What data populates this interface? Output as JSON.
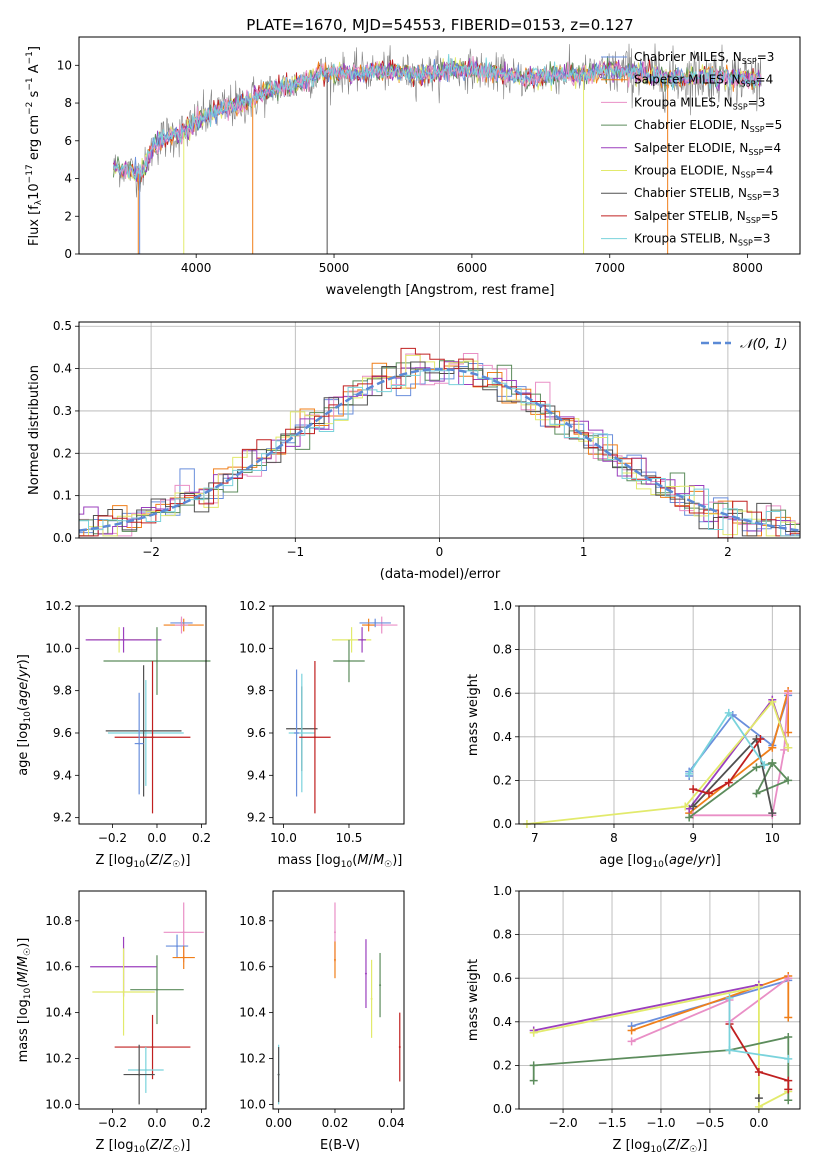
{
  "title": "PLATE=1670, MJD=54553, FIBERID=0153, z=0.127",
  "colors": {
    "Chabrier MILES": "#6a8fdc",
    "Salpeter MILES": "#f07f1a",
    "Kroupa MILES": "#e98fc6",
    "Chabrier ELODIE": "#5c8c5c",
    "Salpeter ELODIE": "#9b3fbe",
    "Kroupa ELODIE": "#e2ea6c",
    "Chabrier STELIB": "#505050",
    "Salpeter STELIB": "#c02020",
    "Kroupa STELIB": "#7ad3dc"
  },
  "panel_spectrum": {
    "xlabel": "wavelength [Angstrom, rest frame]",
    "ylabel": "Flux [f_λ10^-17 erg cm^-2 s^-1 A^-1]",
    "xticks": [
      "4000",
      "5000",
      "6000",
      "7000",
      "8000"
    ],
    "yticks": [
      "0",
      "2",
      "4",
      "6",
      "8",
      "10"
    ],
    "legend": [
      {
        "key": "Chabrier MILES",
        "base": "Chabrier MILES, N",
        "sub": "SSP",
        "tail": "=3"
      },
      {
        "key": "Salpeter MILES",
        "base": "Salpeter MILES, N",
        "sub": "SSP",
        "tail": "=4"
      },
      {
        "key": "Kroupa MILES",
        "base": "Kroupa MILES, N",
        "sub": "SSP",
        "tail": "=3"
      },
      {
        "key": "Chabrier ELODIE",
        "base": "Chabrier ELODIE, N",
        "sub": "SSP",
        "tail": "=5"
      },
      {
        "key": "Salpeter ELODIE",
        "base": "Salpeter ELODIE, N",
        "sub": "SSP",
        "tail": "=4"
      },
      {
        "key": "Kroupa ELODIE",
        "base": "Kroupa ELODIE, N",
        "sub": "SSP",
        "tail": "=4"
      },
      {
        "key": "Chabrier STELIB",
        "base": "Chabrier STELIB, N",
        "sub": "SSP",
        "tail": "=3"
      },
      {
        "key": "Salpeter STELIB",
        "base": "Salpeter STELIB, N",
        "sub": "SSP",
        "tail": "=5"
      },
      {
        "key": "Kroupa STELIB",
        "base": "Kroupa STELIB, N",
        "sub": "SSP",
        "tail": "=3"
      }
    ]
  },
  "panel_hist": {
    "xlabel": "(data-model)/error",
    "ylabel": "Normed distribution",
    "legend": "𝒩(0, 1)",
    "xticks": [
      "−2",
      "−1",
      "0",
      "1",
      "2"
    ],
    "yticks": [
      "0.0",
      "0.1",
      "0.2",
      "0.3",
      "0.4",
      "0.5"
    ]
  },
  "panel_age_Z": {
    "xlabel": "Z [log₁₀(Z/Z☉)]",
    "ylabel": "age  [log₁₀(age/yr)]",
    "xticks": [
      "−0.2",
      "0.0",
      "0.2"
    ],
    "yticks": [
      "9.2",
      "9.4",
      "9.6",
      "9.8",
      "10.0",
      "10.2"
    ]
  },
  "panel_age_mass": {
    "xlabel": "mass [log₁₀(M/M☉)]",
    "xticks": [
      "10.0",
      "10.5"
    ],
    "yticks": [
      "9.2",
      "9.4",
      "9.6",
      "9.8",
      "10.0",
      "10.2"
    ]
  },
  "panel_mw_age": {
    "xlabel": "age  [log₁₀(age/yr)]",
    "ylabel": "mass weight",
    "xticks": [
      "7",
      "8",
      "9",
      "10"
    ],
    "yticks": [
      "0.0",
      "0.2",
      "0.4",
      "0.6",
      "0.8",
      "1.0"
    ]
  },
  "panel_mass_Z": {
    "xlabel": "Z [log₁₀(Z/Z☉)]",
    "ylabel": "mass [log₁₀(M/M☉)]",
    "xticks": [
      "−0.2",
      "0.0",
      "0.2"
    ],
    "yticks": [
      "10.0",
      "10.2",
      "10.4",
      "10.6",
      "10.8"
    ]
  },
  "panel_mass_ebv": {
    "xlabel": "E(B-V)",
    "xticks": [
      "0.00",
      "0.02",
      "0.04"
    ],
    "yticks": [
      "10.0",
      "10.2",
      "10.4",
      "10.6",
      "10.8"
    ]
  },
  "panel_mw_Z": {
    "xlabel": "Z [log₁₀(Z/Z☉)]",
    "ylabel": "mass weight",
    "xticks": [
      "−2.0",
      "−1.5",
      "−1.0",
      "−0.5",
      "0.0"
    ],
    "yticks": [
      "0.0",
      "0.2",
      "0.4",
      "0.6",
      "0.8",
      "1.0"
    ]
  },
  "chart_data": [
    {
      "type": "line",
      "xlim": [
        3150,
        8380
      ],
      "ylim": [
        0,
        11.5
      ],
      "continuum_model": [
        [
          3400,
          4.6
        ],
        [
          3500,
          4.5
        ],
        [
          3600,
          4.2
        ],
        [
          3700,
          5.8
        ],
        [
          3800,
          6.3
        ],
        [
          3900,
          6.4
        ],
        [
          4000,
          7.0
        ],
        [
          4100,
          7.4
        ],
        [
          4200,
          7.7
        ],
        [
          4300,
          7.9
        ],
        [
          4400,
          8.2
        ],
        [
          4500,
          8.6
        ],
        [
          4600,
          8.8
        ],
        [
          4700,
          8.9
        ],
        [
          4800,
          9.2
        ],
        [
          4900,
          9.6
        ],
        [
          5000,
          9.6
        ],
        [
          5200,
          9.6
        ],
        [
          5400,
          9.7
        ],
        [
          5600,
          9.5
        ],
        [
          5800,
          9.7
        ],
        [
          6000,
          9.8
        ],
        [
          6200,
          9.5
        ],
        [
          6400,
          9.3
        ],
        [
          6600,
          9.5
        ],
        [
          6800,
          9.5
        ],
        [
          7000,
          9.7
        ],
        [
          7200,
          9.6
        ],
        [
          7400,
          9.3
        ],
        [
          7600,
          9.4
        ],
        [
          7800,
          9.4
        ],
        [
          8000,
          9.3
        ],
        [
          8100,
          9.3
        ]
      ],
      "model_drops": [
        [
          "Chabrier MILES",
          3590
        ],
        [
          "Salpeter MILES",
          3580
        ],
        [
          "Kroupa ELODIE",
          3910
        ],
        [
          "Salpeter MILES",
          4410
        ],
        [
          "Chabrier STELIB",
          4950
        ],
        [
          "Kroupa ELODIE",
          6810
        ],
        [
          "Salpeter MILES",
          7420
        ]
      ]
    },
    {
      "type": "line",
      "series_name": "𝒩(0, 1)",
      "xlim": [
        -2.5,
        2.5
      ],
      "ylim": [
        0,
        0.51
      ],
      "gaussian": {
        "mu": 0,
        "sigma": 1
      },
      "hist_bin_width": 0.1,
      "hist_profile": "approximately normal; histograms of all nine models follow the gaussian curve, peaking 0.40-0.48 near 0"
    },
    {
      "type": "scatter",
      "x_axis": "Z",
      "y_axis": "age",
      "xlim": [
        -0.35,
        0.22
      ],
      "ylim": [
        9.17,
        10.2
      ],
      "points": [
        {
          "model": "Salpeter MILES",
          "x": 0.12,
          "y": 10.11,
          "xerr": 0.09,
          "yerr": 0.03
        },
        {
          "model": "Chabrier MILES",
          "x": 0.11,
          "y": 10.12,
          "xerr": 0.05,
          "yerr": 0.02
        },
        {
          "model": "Kroupa MILES",
          "x": 0.11,
          "y": 10.11,
          "xerr": 0.03,
          "yerr": 0.04
        },
        {
          "model": "Kroupa ELODIE",
          "x": -0.17,
          "y": 10.04,
          "xerr": 0.14,
          "yerr": 0.06
        },
        {
          "model": "Salpeter ELODIE",
          "x": -0.15,
          "y": 10.04,
          "xerr": 0.17,
          "yerr": 0.06
        },
        {
          "model": "Chabrier ELODIE",
          "x": 0.0,
          "y": 9.94,
          "xerr": 0.24,
          "yerr": 0.16
        },
        {
          "model": "Kroupa STELIB",
          "x": -0.05,
          "y": 9.6,
          "xerr": 0.17,
          "yerr": 0.25
        },
        {
          "model": "Chabrier STELIB",
          "x": -0.06,
          "y": 9.61,
          "xerr": 0.17,
          "yerr": 0.31
        },
        {
          "model": "Salpeter STELIB",
          "x": -0.02,
          "y": 9.58,
          "xerr": 0.17,
          "yerr": 0.36
        },
        {
          "model": "Chabrier MILES",
          "x": -0.08,
          "y": 9.55,
          "xerr": 0.02,
          "yerr": 0.24
        }
      ]
    },
    {
      "type": "scatter",
      "x_axis": "mass",
      "y_axis": "age",
      "xlim": [
        9.92,
        10.92
      ],
      "ylim": [
        9.17,
        10.2
      ],
      "points": [
        {
          "model": "Kroupa MILES",
          "x": 10.75,
          "y": 10.11,
          "xerr": 0.12,
          "yerr": 0.04
        },
        {
          "model": "Salpeter MILES",
          "x": 10.65,
          "y": 10.11,
          "xerr": 0.05,
          "yerr": 0.03
        },
        {
          "model": "Chabrier MILES",
          "x": 10.7,
          "y": 10.12,
          "xerr": 0.12,
          "yerr": 0.02
        },
        {
          "model": "Kroupa ELODIE",
          "x": 10.52,
          "y": 10.04,
          "xerr": 0.15,
          "yerr": 0.06
        },
        {
          "model": "Salpeter ELODIE",
          "x": 10.6,
          "y": 10.04,
          "xerr": 0.03,
          "yerr": 0.06
        },
        {
          "model": "Chabrier ELODIE",
          "x": 10.5,
          "y": 9.94,
          "xerr": 0.12,
          "yerr": 0.1
        },
        {
          "model": "Chabrier STELIB",
          "x": 10.14,
          "y": 9.62,
          "xerr": 0.12,
          "yerr": 0.2
        },
        {
          "model": "Kroupa STELIB",
          "x": 10.14,
          "y": 9.6,
          "xerr": 0.1,
          "yerr": 0.28
        },
        {
          "model": "Salpeter STELIB",
          "x": 10.24,
          "y": 9.58,
          "xerr": 0.12,
          "yerr": 0.36
        },
        {
          "model": "Chabrier MILES",
          "x": 10.1,
          "y": 9.6,
          "xerr": 0.02,
          "yerr": 0.3
        }
      ]
    },
    {
      "type": "line",
      "x_axis": "age",
      "y_axis": "mass weight",
      "xlim": [
        6.8,
        10.35
      ],
      "ylim": [
        0,
        1
      ],
      "series": [
        {
          "model": "Chabrier MILES",
          "points": [
            [
              8.95,
              0.22
            ],
            [
              8.95,
              0.24
            ],
            [
              9.5,
              0.5
            ],
            [
              10.0,
              0.36
            ],
            [
              10.2,
              0.59
            ]
          ]
        },
        {
          "model": "Salpeter MILES",
          "points": [
            [
              8.95,
              0.05
            ],
            [
              10.0,
              0.35
            ],
            [
              10.2,
              0.61
            ],
            [
              10.2,
              0.42
            ]
          ]
        },
        {
          "model": "Kroupa MILES",
          "points": [
            [
              9.0,
              0.04
            ],
            [
              10.0,
              0.04
            ],
            [
              10.15,
              0.34
            ],
            [
              10.2,
              0.6
            ]
          ]
        },
        {
          "model": "Chabrier ELODIE",
          "points": [
            [
              8.95,
              0.03
            ],
            [
              9.8,
              0.26
            ],
            [
              10.0,
              0.28
            ],
            [
              10.2,
              0.2
            ],
            [
              9.8,
              0.14
            ],
            [
              10.0,
              0.28
            ]
          ]
        },
        {
          "model": "Salpeter ELODIE",
          "points": [
            [
              8.95,
              0.07
            ],
            [
              10.0,
              0.57
            ],
            [
              10.2,
              0.35
            ]
          ]
        },
        {
          "model": "Kroupa ELODIE",
          "points": [
            [
              6.9,
              0.0
            ],
            [
              8.9,
              0.08
            ],
            [
              10.0,
              0.56
            ],
            [
              10.2,
              0.35
            ]
          ]
        },
        {
          "model": "Chabrier STELIB",
          "points": [
            [
              9.0,
              0.08
            ],
            [
              9.8,
              0.39
            ],
            [
              10.0,
              0.05
            ]
          ]
        },
        {
          "model": "Salpeter STELIB",
          "points": [
            [
              9.0,
              0.16
            ],
            [
              9.2,
              0.14
            ],
            [
              9.45,
              0.19
            ],
            [
              9.85,
              0.39
            ]
          ]
        },
        {
          "model": "Kroupa STELIB",
          "points": [
            [
              8.95,
              0.23
            ],
            [
              9.45,
              0.51
            ],
            [
              9.9,
              0.27
            ]
          ]
        }
      ]
    },
    {
      "type": "scatter",
      "x_axis": "Z",
      "y_axis": "mass",
      "xlim": [
        -0.35,
        0.22
      ],
      "ylim": [
        9.98,
        10.93
      ],
      "points": [
        {
          "model": "Kroupa MILES",
          "x": 0.12,
          "y": 10.75,
          "xerr": 0.09,
          "yerr": 0.13
        },
        {
          "model": "Chabrier MILES",
          "x": 0.09,
          "y": 10.69,
          "xerr": 0.05,
          "yerr": 0.05
        },
        {
          "model": "Salpeter MILES",
          "x": 0.12,
          "y": 10.64,
          "xerr": 0.05,
          "yerr": 0.05
        },
        {
          "model": "Salpeter ELODIE",
          "x": -0.15,
          "y": 10.6,
          "xerr": 0.15,
          "yerr": 0.13
        },
        {
          "model": "Kroupa ELODIE",
          "x": -0.15,
          "y": 10.49,
          "xerr": 0.14,
          "yerr": 0.19
        },
        {
          "model": "Chabrier ELODIE",
          "x": 0.0,
          "y": 10.5,
          "xerr": 0.12,
          "yerr": 0.15
        },
        {
          "model": "Salpeter STELIB",
          "x": -0.02,
          "y": 10.25,
          "xerr": 0.17,
          "yerr": 0.14
        },
        {
          "model": "Kroupa STELIB",
          "x": -0.05,
          "y": 10.15,
          "xerr": 0.08,
          "yerr": 0.1
        },
        {
          "model": "Chabrier STELIB",
          "x": -0.08,
          "y": 10.13,
          "xerr": 0.07,
          "yerr": 0.13
        }
      ]
    },
    {
      "type": "scatter",
      "x_axis": "E(B-V)",
      "y_axis": "mass",
      "xlim": [
        -0.002,
        0.0445
      ],
      "ylim": [
        9.98,
        10.93
      ],
      "points": [
        {
          "model": "Kroupa MILES",
          "x": 0.02,
          "y": 10.75,
          "yerr": 0.13
        },
        {
          "model": "Salpeter MILES",
          "x": 0.02,
          "y": 10.63,
          "yerr": 0.08
        },
        {
          "model": "Salpeter ELODIE",
          "x": 0.031,
          "y": 10.57,
          "yerr": 0.15
        },
        {
          "model": "Kroupa ELODIE",
          "x": 0.033,
          "y": 10.46,
          "yerr": 0.17
        },
        {
          "model": "Chabrier ELODIE",
          "x": 0.036,
          "y": 10.52,
          "yerr": 0.14
        },
        {
          "model": "Kroupa STELIB",
          "x": 0.0,
          "y": 10.13,
          "yerr": 0.13
        },
        {
          "model": "Chabrier STELIB",
          "x": 0.0,
          "y": 10.13,
          "yerr": 0.12
        },
        {
          "model": "Salpeter STELIB",
          "x": 0.043,
          "y": 10.25,
          "yerr": 0.15
        }
      ]
    },
    {
      "type": "line",
      "x_axis": "Z",
      "y_axis": "mass weight",
      "xlim": [
        -2.45,
        0.42
      ],
      "ylim": [
        0,
        1
      ],
      "series": [
        {
          "model": "Chabrier MILES",
          "points": [
            [
              -1.3,
              0.38
            ],
            [
              0.3,
              0.59
            ]
          ]
        },
        {
          "model": "Salpeter MILES",
          "points": [
            [
              -1.3,
              0.36
            ],
            [
              0.3,
              0.61
            ],
            [
              0.3,
              0.42
            ]
          ]
        },
        {
          "model": "Kroupa MILES",
          "points": [
            [
              -1.3,
              0.31
            ],
            [
              -0.3,
              0.5
            ],
            [
              -0.3,
              0.4
            ],
            [
              0.3,
              0.6
            ]
          ]
        },
        {
          "model": "Salpeter ELODIE",
          "points": [
            [
              -2.3,
              0.36
            ],
            [
              0.0,
              0.57
            ]
          ]
        },
        {
          "model": "Kroupa ELODIE",
          "points": [
            [
              -2.3,
              0.35
            ],
            [
              0.0,
              0.56
            ],
            [
              0.0,
              0.01
            ],
            [
              0.3,
              0.08
            ]
          ]
        },
        {
          "model": "Chabrier ELODIE",
          "points": [
            [
              -2.3,
              0.13
            ],
            [
              -2.3,
              0.2
            ],
            [
              -0.3,
              0.27
            ],
            [
              0.3,
              0.33
            ],
            [
              0.3,
              0.04
            ]
          ]
        },
        {
          "model": "Salpeter STELIB",
          "points": [
            [
              -0.3,
              0.39
            ],
            [
              0.0,
              0.17
            ],
            [
              0.3,
              0.13
            ],
            [
              0.3,
              0.09
            ]
          ]
        },
        {
          "model": "Kroupa STELIB",
          "points": [
            [
              -0.3,
              0.51
            ],
            [
              -0.3,
              0.27
            ],
            [
              0.3,
              0.23
            ]
          ]
        },
        {
          "model": "Chabrier STELIB",
          "points": [
            [
              0.0,
              0.05
            ]
          ]
        }
      ]
    }
  ]
}
